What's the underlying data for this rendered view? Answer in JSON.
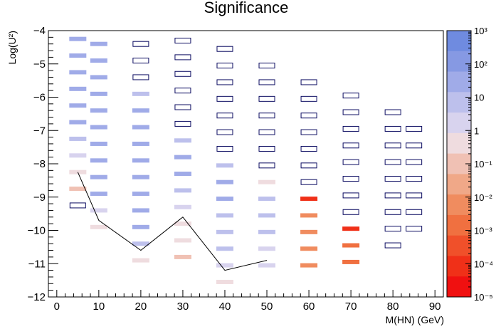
{
  "chart_data": {
    "type": "heatmap",
    "title": "Significance",
    "xlabel": "M(HN) (GeV)",
    "ylabel": "Log(U²)",
    "xlim": [
      -2,
      92
    ],
    "ylim": [
      -12,
      -4
    ],
    "x_ticks": [
      "0",
      "10",
      "20",
      "30",
      "40",
      "50",
      "60",
      "70",
      "80",
      "90"
    ],
    "x_tick_values": [
      0,
      10,
      20,
      30,
      40,
      50,
      60,
      70,
      80,
      90
    ],
    "y_ticks": [
      "−4",
      "−5",
      "−6",
      "−7",
      "−8",
      "−9",
      "−10",
      "−11",
      "−12"
    ],
    "y_tick_values": [
      -4,
      -5,
      -6,
      -7,
      -8,
      -9,
      -10,
      -11,
      -12
    ],
    "colorbar": {
      "scale": "log",
      "range": [
        1e-05,
        1000
      ],
      "tick_labels": [
        "10³",
        "10²",
        "10",
        "1",
        "10⁻¹",
        "10⁻²",
        "10⁻³",
        "10⁻⁴",
        "10⁻⁵"
      ],
      "tick_values": [
        1000,
        100,
        10,
        1,
        0.1,
        0.01,
        0.001,
        0.0001,
        1e-05
      ],
      "colors_high_to_low": [
        "#6f8be0",
        "#8699e3",
        "#a0abe8",
        "#bdc0ec",
        "#d8d3ee",
        "#efdcdf",
        "#f0c1b4",
        "#f0a888",
        "#f08c5f",
        "#f07040",
        "#f0502a",
        "#f03018",
        "#f01010"
      ]
    },
    "cells": [
      {
        "x": 5,
        "y": -4.25,
        "value": 80
      },
      {
        "x": 5,
        "y": -4.75,
        "value": 80
      },
      {
        "x": 5,
        "y": -5.25,
        "value": 80
      },
      {
        "x": 5,
        "y": -5.75,
        "value": 80
      },
      {
        "x": 5,
        "y": -6.25,
        "value": 50
      },
      {
        "x": 5,
        "y": -6.75,
        "value": 30
      },
      {
        "x": 5,
        "y": -7.25,
        "value": 15
      },
      {
        "x": 5,
        "y": -7.75,
        "value": 4
      },
      {
        "x": 5,
        "y": -8.25,
        "value": 1
      },
      {
        "x": 5,
        "y": -8.75,
        "value": 0.05
      },
      {
        "x": 5,
        "y": -9.25,
        "value": 0
      },
      {
        "x": 10,
        "y": -4.4,
        "value": 80
      },
      {
        "x": 10,
        "y": -4.9,
        "value": 80
      },
      {
        "x": 10,
        "y": -5.4,
        "value": 80
      },
      {
        "x": 10,
        "y": -5.9,
        "value": 80
      },
      {
        "x": 10,
        "y": -6.4,
        "value": 80
      },
      {
        "x": 10,
        "y": -6.9,
        "value": 60
      },
      {
        "x": 10,
        "y": -7.4,
        "value": 40
      },
      {
        "x": 10,
        "y": -7.9,
        "value": 30
      },
      {
        "x": 10,
        "y": -8.4,
        "value": 40
      },
      {
        "x": 10,
        "y": -8.9,
        "value": 40
      },
      {
        "x": 10,
        "y": -9.4,
        "value": 3
      },
      {
        "x": 10,
        "y": -9.9,
        "value": 0.5
      },
      {
        "x": 20,
        "y": -4.4,
        "value": 0
      },
      {
        "x": 20,
        "y": -4.9,
        "value": 0
      },
      {
        "x": 20,
        "y": -5.4,
        "value": 0
      },
      {
        "x": 20,
        "y": -5.9,
        "value": 20
      },
      {
        "x": 20,
        "y": -6.4,
        "value": 40
      },
      {
        "x": 20,
        "y": -6.9,
        "value": 50
      },
      {
        "x": 20,
        "y": -7.4,
        "value": 60
      },
      {
        "x": 20,
        "y": -7.9,
        "value": 60
      },
      {
        "x": 20,
        "y": -8.4,
        "value": 50
      },
      {
        "x": 20,
        "y": -8.9,
        "value": 40
      },
      {
        "x": 20,
        "y": -9.4,
        "value": 40
      },
      {
        "x": 20,
        "y": -9.9,
        "value": 30
      },
      {
        "x": 20,
        "y": -10.4,
        "value": 5
      },
      {
        "x": 20,
        "y": -10.9,
        "value": 0.7
      },
      {
        "x": 30,
        "y": -4.3,
        "value": 0
      },
      {
        "x": 30,
        "y": -4.8,
        "value": 0
      },
      {
        "x": 30,
        "y": -5.3,
        "value": 0
      },
      {
        "x": 30,
        "y": -5.8,
        "value": 0
      },
      {
        "x": 30,
        "y": -6.3,
        "value": 0
      },
      {
        "x": 30,
        "y": -6.8,
        "value": 0
      },
      {
        "x": 30,
        "y": -7.3,
        "value": 5
      },
      {
        "x": 30,
        "y": -7.8,
        "value": 30
      },
      {
        "x": 30,
        "y": -8.3,
        "value": 30
      },
      {
        "x": 30,
        "y": -8.8,
        "value": 20
      },
      {
        "x": 30,
        "y": -9.3,
        "value": 4
      },
      {
        "x": 30,
        "y": -9.8,
        "value": 1
      },
      {
        "x": 30,
        "y": -10.3,
        "value": 0.3
      },
      {
        "x": 30,
        "y": -10.8,
        "value": 0.05
      },
      {
        "x": 40,
        "y": -4.55,
        "value": 0
      },
      {
        "x": 40,
        "y": -5.05,
        "value": 0
      },
      {
        "x": 40,
        "y": -5.55,
        "value": 0
      },
      {
        "x": 40,
        "y": -6.05,
        "value": 0
      },
      {
        "x": 40,
        "y": -6.55,
        "value": 0
      },
      {
        "x": 40,
        "y": -7.05,
        "value": 0
      },
      {
        "x": 40,
        "y": -7.55,
        "value": 0
      },
      {
        "x": 40,
        "y": -8.05,
        "value": 5
      },
      {
        "x": 40,
        "y": -8.55,
        "value": 30
      },
      {
        "x": 40,
        "y": -9.05,
        "value": 30
      },
      {
        "x": 40,
        "y": -9.55,
        "value": 20
      },
      {
        "x": 40,
        "y": -10.05,
        "value": 15
      },
      {
        "x": 40,
        "y": -10.55,
        "value": 10
      },
      {
        "x": 40,
        "y": -11.05,
        "value": 3
      },
      {
        "x": 40,
        "y": -11.55,
        "value": 0.8
      },
      {
        "x": 50,
        "y": -5.05,
        "value": 0
      },
      {
        "x": 50,
        "y": -5.55,
        "value": 0
      },
      {
        "x": 50,
        "y": -6.05,
        "value": 0
      },
      {
        "x": 50,
        "y": -6.55,
        "value": 0
      },
      {
        "x": 50,
        "y": -7.05,
        "value": 0
      },
      {
        "x": 50,
        "y": -7.55,
        "value": 0
      },
      {
        "x": 50,
        "y": -8.05,
        "value": 0
      },
      {
        "x": 50,
        "y": -8.55,
        "value": 0.5
      },
      {
        "x": 50,
        "y": -9.05,
        "value": 8
      },
      {
        "x": 50,
        "y": -9.55,
        "value": 8
      },
      {
        "x": 50,
        "y": -10.05,
        "value": 6
      },
      {
        "x": 50,
        "y": -10.55,
        "value": 3
      },
      {
        "x": 50,
        "y": -11.05,
        "value": 1.5
      },
      {
        "x": 60,
        "y": -5.55,
        "value": 0
      },
      {
        "x": 60,
        "y": -6.05,
        "value": 0
      },
      {
        "x": 60,
        "y": -6.55,
        "value": 0
      },
      {
        "x": 60,
        "y": -7.05,
        "value": 0
      },
      {
        "x": 60,
        "y": -7.55,
        "value": 0
      },
      {
        "x": 60,
        "y": -8.05,
        "value": 0
      },
      {
        "x": 60,
        "y": -8.55,
        "value": 0
      },
      {
        "x": 60,
        "y": -9.05,
        "value": 0.0001
      },
      {
        "x": 60,
        "y": -9.55,
        "value": 0.005
      },
      {
        "x": 60,
        "y": -10.05,
        "value": 0.01
      },
      {
        "x": 60,
        "y": -10.55,
        "value": 0.005
      },
      {
        "x": 60,
        "y": -11.05,
        "value": 0.003
      },
      {
        "x": 70,
        "y": -5.95,
        "value": 0
      },
      {
        "x": 70,
        "y": -6.45,
        "value": 0
      },
      {
        "x": 70,
        "y": -6.95,
        "value": 0
      },
      {
        "x": 70,
        "y": -7.45,
        "value": 0
      },
      {
        "x": 70,
        "y": -7.95,
        "value": 0
      },
      {
        "x": 70,
        "y": -8.45,
        "value": 0
      },
      {
        "x": 70,
        "y": -8.95,
        "value": 0
      },
      {
        "x": 70,
        "y": -9.45,
        "value": 0
      },
      {
        "x": 70,
        "y": -9.95,
        "value": 5e-05
      },
      {
        "x": 70,
        "y": -10.45,
        "value": 0.0005
      },
      {
        "x": 70,
        "y": -10.95,
        "value": 0.0005
      },
      {
        "x": 80,
        "y": -6.45,
        "value": 0
      },
      {
        "x": 80,
        "y": -6.95,
        "value": 0
      },
      {
        "x": 80,
        "y": -7.45,
        "value": 0
      },
      {
        "x": 80,
        "y": -7.95,
        "value": 0
      },
      {
        "x": 80,
        "y": -8.45,
        "value": 0
      },
      {
        "x": 80,
        "y": -8.95,
        "value": 0
      },
      {
        "x": 80,
        "y": -9.45,
        "value": 0
      },
      {
        "x": 80,
        "y": -9.95,
        "value": 0
      },
      {
        "x": 80,
        "y": -10.45,
        "value": 0
      },
      {
        "x": 85,
        "y": -6.95,
        "value": 0
      },
      {
        "x": 85,
        "y": -7.45,
        "value": 0
      },
      {
        "x": 85,
        "y": -7.95,
        "value": 0
      },
      {
        "x": 85,
        "y": -8.45,
        "value": 0
      },
      {
        "x": 85,
        "y": -8.95,
        "value": 0
      },
      {
        "x": 85,
        "y": -9.45,
        "value": 0
      },
      {
        "x": 85,
        "y": -9.95,
        "value": 0
      }
    ],
    "contour": {
      "x": [
        5,
        10,
        20,
        30,
        40,
        50
      ],
      "y": [
        -8.25,
        -9.7,
        -10.6,
        -9.6,
        -11.2,
        -10.9
      ]
    }
  }
}
